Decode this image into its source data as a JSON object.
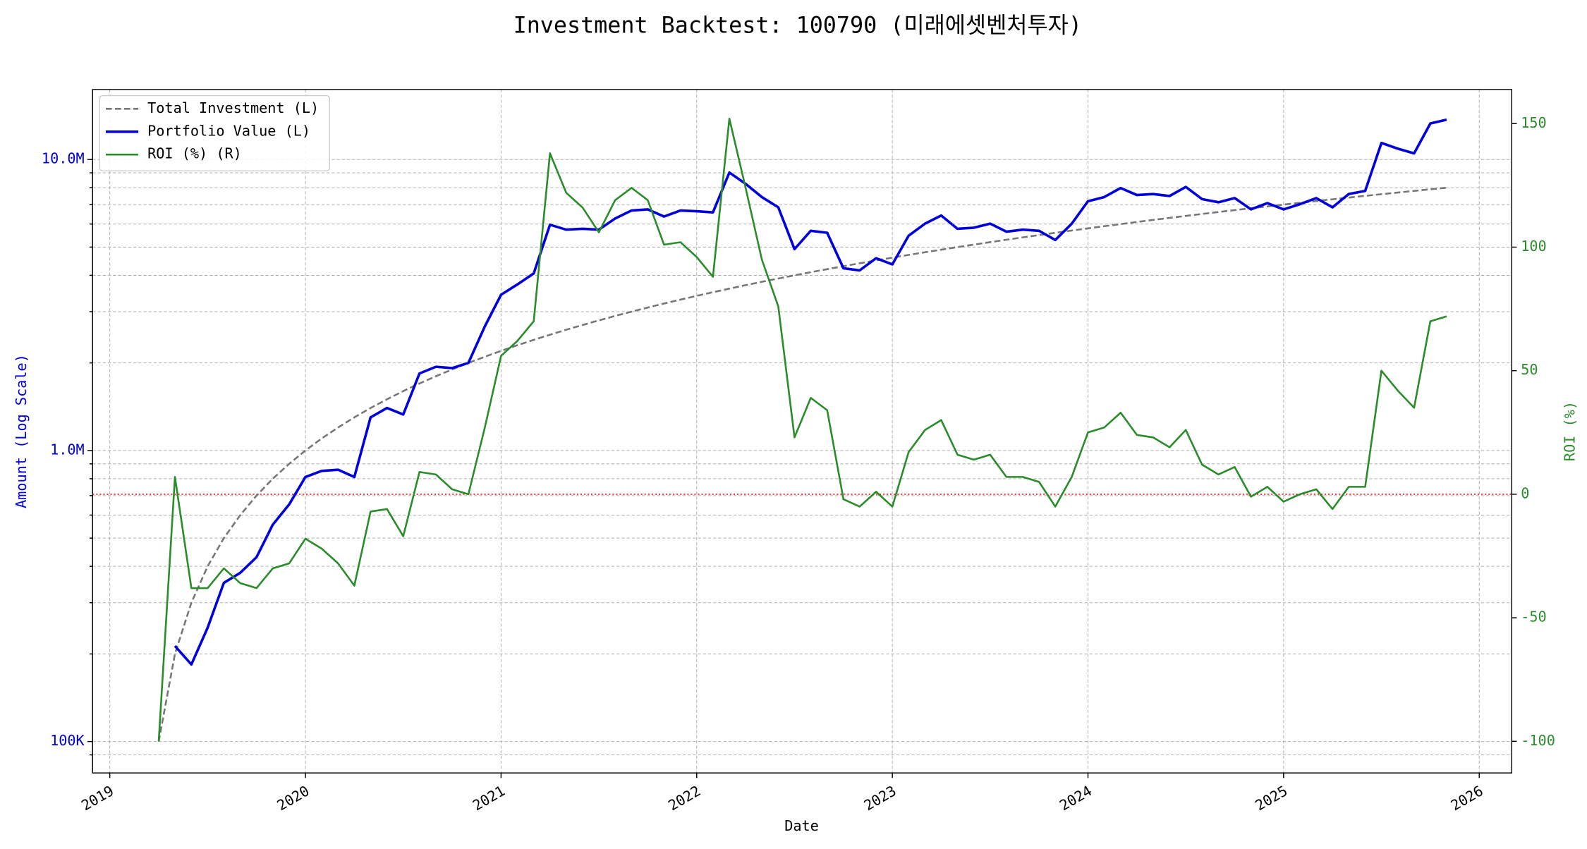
{
  "chart_data": {
    "type": "line",
    "title": "Investment Backtest: 100790 (미래에셋벤처투자)",
    "xlabel": "Date",
    "ylabel": "Amount (Log Scale)",
    "y2label": "ROI (%)",
    "yscale": "log",
    "grid": true,
    "legend": "upper left",
    "xlim": [
      2018.912,
      2026.166
    ],
    "xticks": [
      2019,
      2020,
      2021,
      2022,
      2023,
      2024,
      2025,
      2026
    ],
    "ylim": [
      78000,
      17400000
    ],
    "yticks": [
      {
        "value": 100000,
        "label": "100K"
      },
      {
        "value": 1000000,
        "label": "1.0M"
      },
      {
        "value": 10000000,
        "label": "10.0M"
      }
    ],
    "yminor_ticks": [
      90000,
      200000,
      300000,
      400000,
      500000,
      600000,
      700000,
      800000,
      900000,
      2000000,
      3000000,
      4000000,
      5000000,
      6000000,
      7000000,
      8000000,
      9000000
    ],
    "y2lim": [
      -112.8,
      163.8
    ],
    "y2ticks": [
      -100,
      -50,
      0,
      50,
      100,
      150
    ],
    "hline": {
      "value": 0,
      "axis": "y2",
      "color": "#e00000"
    },
    "x": [
      2019.25,
      2019.333,
      2019.417,
      2019.5,
      2019.583,
      2019.667,
      2019.75,
      2019.833,
      2019.917,
      2020.0,
      2020.083,
      2020.167,
      2020.25,
      2020.333,
      2020.417,
      2020.5,
      2020.583,
      2020.667,
      2020.75,
      2020.833,
      2020.917,
      2021.0,
      2021.083,
      2021.167,
      2021.25,
      2021.333,
      2021.417,
      2021.5,
      2021.583,
      2021.667,
      2021.75,
      2021.833,
      2021.917,
      2022.0,
      2022.083,
      2022.167,
      2022.25,
      2022.333,
      2022.417,
      2022.5,
      2022.583,
      2022.667,
      2022.75,
      2022.833,
      2022.917,
      2023.0,
      2023.083,
      2023.167,
      2023.25,
      2023.333,
      2023.417,
      2023.5,
      2023.583,
      2023.667,
      2023.75,
      2023.833,
      2023.917,
      2024.0,
      2024.083,
      2024.167,
      2024.25,
      2024.333,
      2024.417,
      2024.5,
      2024.583,
      2024.667,
      2024.75,
      2024.833,
      2024.917,
      2025.0,
      2025.083,
      2025.167,
      2025.25,
      2025.333,
      2025.417,
      2025.5,
      2025.583,
      2025.667,
      2025.75,
      2025.833
    ],
    "series": [
      {
        "name": "Total Investment (L)",
        "color": "#777777",
        "linestyle": "dashed",
        "axis": "y",
        "values": [
          100000,
          200000,
          300000,
          400000,
          500000,
          600000,
          700000,
          800000,
          900000,
          1000000,
          1100000,
          1200000,
          1300000,
          1400000,
          1500000,
          1600000,
          1700000,
          1800000,
          1900000,
          2000000,
          2100000,
          2200000,
          2300000,
          2400000,
          2500000,
          2600000,
          2700000,
          2800000,
          2900000,
          3000000,
          3100000,
          3200000,
          3300000,
          3400000,
          3500000,
          3600000,
          3700000,
          3800000,
          3900000,
          4000000,
          4100000,
          4200000,
          4300000,
          4400000,
          4500000,
          4600000,
          4700000,
          4800000,
          4900000,
          5000000,
          5100000,
          5200000,
          5300000,
          5400000,
          5500000,
          5600000,
          5700000,
          5800000,
          5900000,
          6000000,
          6100000,
          6200000,
          6300000,
          6400000,
          6500000,
          6600000,
          6700000,
          6800000,
          6900000,
          7000000,
          7100000,
          7200000,
          7300000,
          7400000,
          7500000,
          7600000,
          7700000,
          7800000,
          7900000,
          8000000
        ]
      },
      {
        "name": "Portfolio Value (L)",
        "color": "#0000dd",
        "linestyle": "solid",
        "width": 2.5,
        "axis": "y",
        "values": [
          null,
          213000,
          184000,
          246000,
          351000,
          380000,
          430000,
          556000,
          653000,
          811000,
          851000,
          859000,
          811000,
          1300000,
          1400000,
          1330000,
          1840000,
          1940000,
          1920000,
          2000000,
          2670000,
          3430000,
          3720000,
          4060000,
          5970000,
          5740000,
          5780000,
          5740000,
          6270000,
          6680000,
          6740000,
          6370000,
          6680000,
          6640000,
          6580000,
          9020000,
          8250000,
          7430000,
          6850000,
          4920000,
          5690000,
          5600000,
          4230000,
          4160000,
          4580000,
          4360000,
          5470000,
          6020000,
          6420000,
          5780000,
          5830000,
          6020000,
          5650000,
          5740000,
          5690000,
          5290000,
          6020000,
          7190000,
          7430000,
          7980000,
          7550000,
          7610000,
          7490000,
          8050000,
          7310000,
          7130000,
          7370000,
          6740000,
          7080000,
          6740000,
          7020000,
          7370000,
          6850000,
          7610000,
          7800000,
          11400000,
          10900000,
          10500000,
          13300000,
          13700000
        ]
      },
      {
        "name": "ROI (%) (R)",
        "color": "#2a8c2a",
        "linestyle": "solid",
        "width": 1.8,
        "axis": "y2",
        "values": [
          -100,
          7,
          -38,
          -38,
          -30,
          -36,
          -38,
          -30,
          -28,
          -18,
          -22,
          -28,
          -37,
          -7,
          -6,
          -17,
          9,
          8,
          2,
          0,
          27,
          56,
          62,
          70,
          138,
          122,
          116,
          106,
          119,
          124,
          119,
          101,
          102,
          96,
          88,
          152,
          124,
          95,
          76,
          23,
          39,
          34,
          -2,
          -5,
          1,
          -5,
          17,
          26,
          30,
          16,
          14,
          16,
          7,
          7,
          5,
          -5,
          7,
          25,
          27,
          33,
          24,
          23,
          19,
          26,
          12,
          8,
          11,
          -1,
          3,
          -3,
          0,
          2,
          -6,
          3,
          3,
          50,
          42,
          35,
          70,
          72
        ]
      }
    ]
  }
}
